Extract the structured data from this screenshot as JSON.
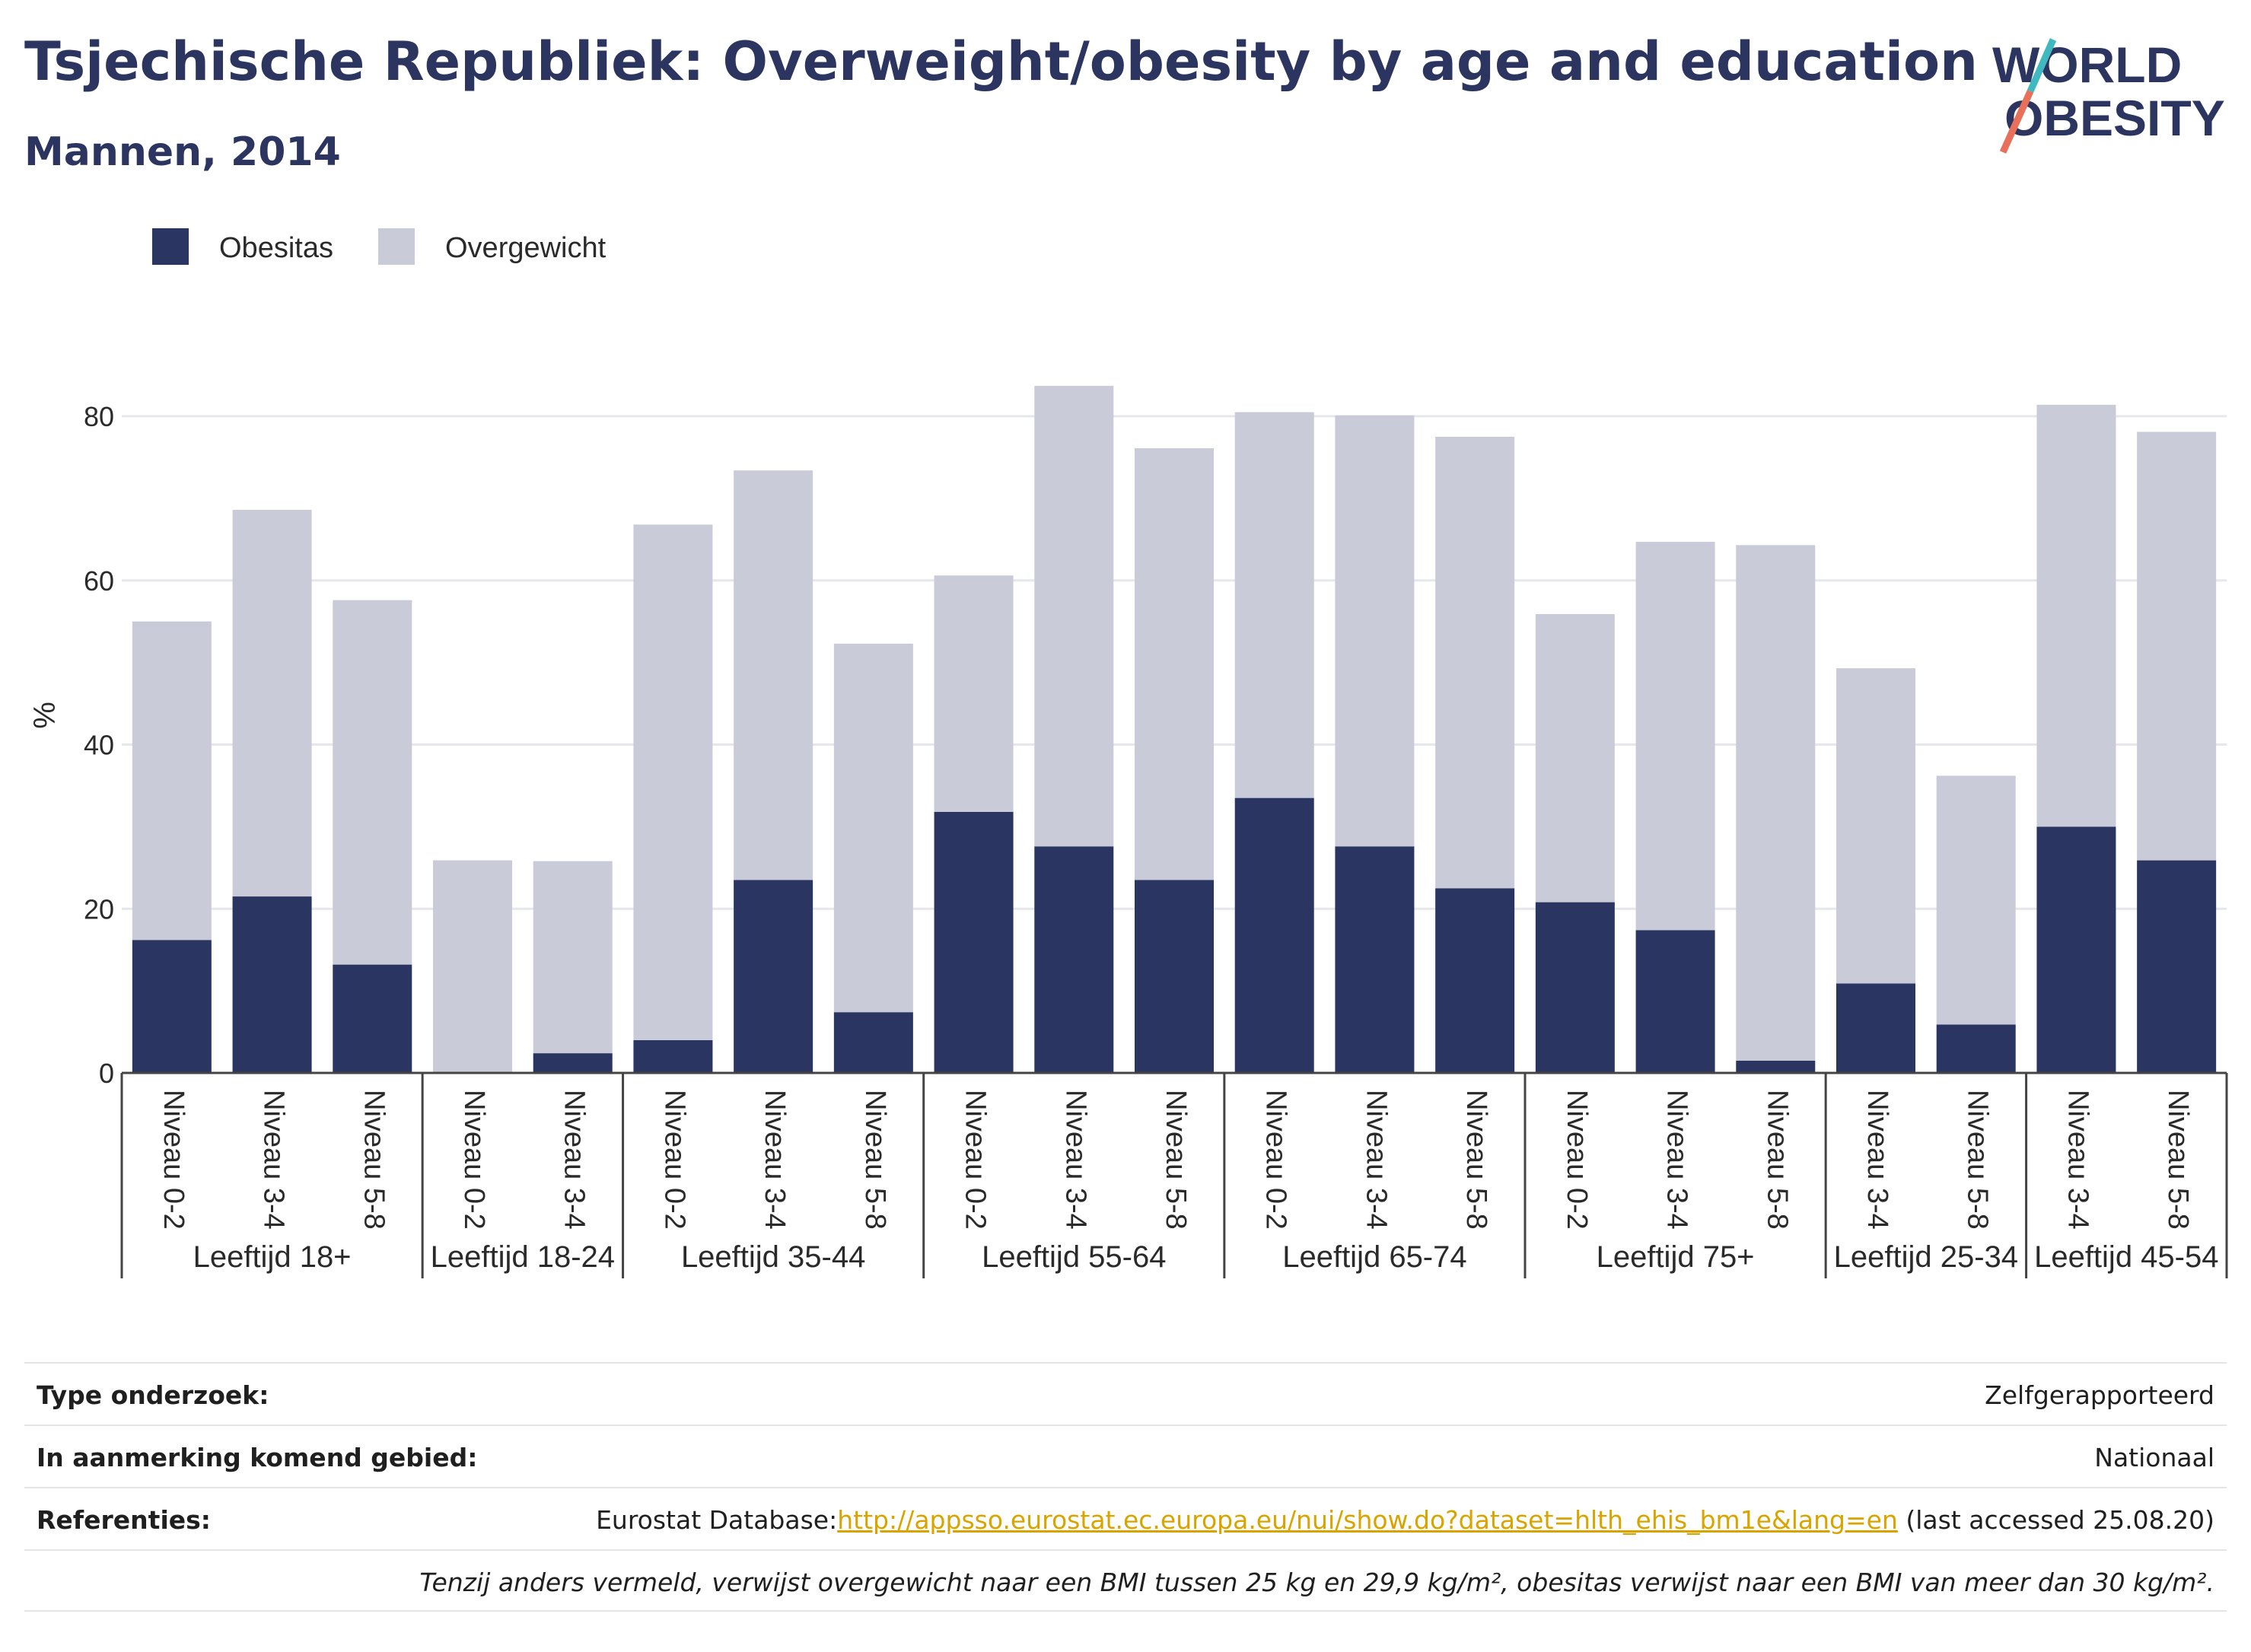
{
  "header": {
    "title": "Tsjechische Republiek: Overweight/obesity by age and education",
    "subtitle": "Mannen, 2014"
  },
  "logo": {
    "line1": "WORLD",
    "line2": "OBESITY"
  },
  "colors": {
    "obesitas": "#2b3562",
    "overgewicht": "#c9cbd8",
    "text": "#2c3560",
    "link": "#d9a400"
  },
  "chart_data": {
    "type": "bar",
    "stacked": true,
    "ylabel": "%",
    "ylim": [
      0,
      88
    ],
    "yticks": [
      0,
      20,
      40,
      60,
      80
    ],
    "grid": true,
    "legend": "top-left",
    "groups": [
      {
        "label": "Leeftijd 18+",
        "categories": [
          "Niveau 0-2",
          "Niveau 3-4",
          "Niveau 5-8"
        ]
      },
      {
        "label": "Leeftijd 18-24",
        "categories": [
          "Niveau 0-2",
          "Niveau 3-4"
        ]
      },
      {
        "label": "Leeftijd 35-44",
        "categories": [
          "Niveau 0-2",
          "Niveau 3-4",
          "Niveau 5-8"
        ]
      },
      {
        "label": "Leeftijd 55-64",
        "categories": [
          "Niveau 0-2",
          "Niveau 3-4",
          "Niveau 5-8"
        ]
      },
      {
        "label": "Leeftijd 65-74",
        "categories": [
          "Niveau 0-2",
          "Niveau 3-4",
          "Niveau 5-8"
        ]
      },
      {
        "label": "Leeftijd 75+",
        "categories": [
          "Niveau 0-2",
          "Niveau 3-4",
          "Niveau 5-8"
        ]
      },
      {
        "label": "Leeftijd 25-34",
        "categories": [
          "Niveau 3-4",
          "Niveau 5-8"
        ]
      },
      {
        "label": "Leeftijd 45-54",
        "categories": [
          "Niveau 3-4",
          "Niveau 5-8"
        ]
      }
    ],
    "series": [
      {
        "name": "Obesitas",
        "values": [
          16.2,
          21.5,
          13.2,
          0,
          2.4,
          4.0,
          23.5,
          7.4,
          31.8,
          27.6,
          23.5,
          33.5,
          27.6,
          22.5,
          20.8,
          17.4,
          1.5,
          10.9,
          5.9,
          30.0,
          25.9
        ]
      },
      {
        "name": "Overgewicht",
        "values": [
          38.8,
          47.1,
          44.4,
          25.9,
          23.4,
          62.8,
          49.9,
          44.9,
          28.8,
          56.1,
          52.6,
          47.0,
          52.5,
          55.0,
          35.1,
          47.3,
          62.8,
          38.4,
          30.3,
          51.4,
          52.2
        ]
      }
    ]
  },
  "meta": {
    "rows": [
      {
        "label": "Type onderzoek:",
        "value": "Zelfgerapporteerd"
      },
      {
        "label": "In aanmerking komend gebied:",
        "value": "Nationaal"
      }
    ],
    "references": {
      "label": "Referenties:",
      "prefix": "Eurostat Database:",
      "link": "http://appsso.eurostat.ec.europa.eu/nui/show.do?dataset=hlth_ehis_bm1e&lang=en",
      "suffix": " (last accessed 25.08.20)"
    },
    "note": "Tenzij anders vermeld, verwijst overgewicht naar een BMI tussen 25 kg en 29,9 kg/m², obesitas verwijst naar een BMI van meer dan 30 kg/m²."
  }
}
